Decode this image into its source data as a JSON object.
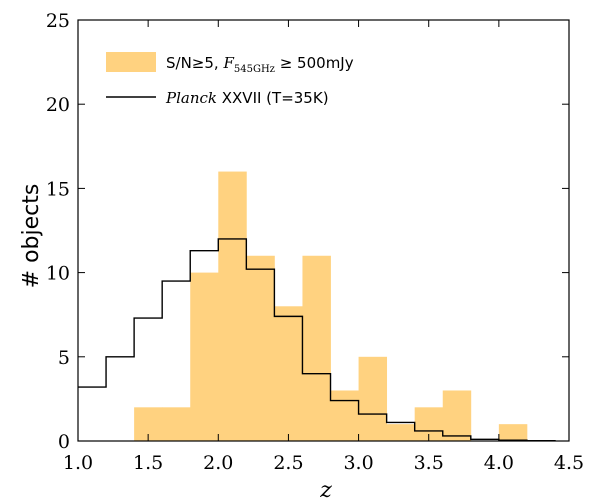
{
  "chart_data": {
    "type": "histogram",
    "xlabel": "z",
    "ylabel": "# objects",
    "xlim": [
      1.0,
      4.5
    ],
    "ylim": [
      0,
      25
    ],
    "xticks": [
      "1.0",
      "1.5",
      "2.0",
      "2.5",
      "3.0",
      "3.5",
      "4.0",
      "4.5"
    ],
    "yticks": [
      "0",
      "5",
      "10",
      "15",
      "20",
      "25"
    ],
    "grid": false,
    "legend_position": "top-left",
    "series": [
      {
        "name": "S/N≥5, F545GHz ≥ 500mJy",
        "legend_parts": {
          "prefix": "S/N≥5, ",
          "var": "F",
          "sub": "545GHz",
          "suffix": " ≥ 500mJy"
        },
        "style": "filled",
        "color": "#ffd280",
        "bins": [
          {
            "x0": 1.4,
            "x1": 1.6,
            "value": 2
          },
          {
            "x0": 1.6,
            "x1": 1.8,
            "value": 2
          },
          {
            "x0": 1.8,
            "x1": 2.0,
            "value": 10
          },
          {
            "x0": 2.0,
            "x1": 2.2,
            "value": 16
          },
          {
            "x0": 2.2,
            "x1": 2.4,
            "value": 11
          },
          {
            "x0": 2.4,
            "x1": 2.6,
            "value": 8
          },
          {
            "x0": 2.6,
            "x1": 2.8,
            "value": 11
          },
          {
            "x0": 2.8,
            "x1": 3.0,
            "value": 3
          },
          {
            "x0": 3.0,
            "x1": 3.2,
            "value": 5
          },
          {
            "x0": 3.2,
            "x1": 3.4,
            "value": 1
          },
          {
            "x0": 3.4,
            "x1": 3.6,
            "value": 2
          },
          {
            "x0": 3.6,
            "x1": 3.8,
            "value": 3
          },
          {
            "x0": 3.8,
            "x1": 4.0,
            "value": 0
          },
          {
            "x0": 4.0,
            "x1": 4.2,
            "value": 1
          }
        ]
      },
      {
        "name": "Planck XXVII (T=35K)",
        "legend_parts": {
          "italic": "Planck",
          "rest": " XXVII (T=35K)"
        },
        "style": "step",
        "color": "#000000",
        "bins": [
          {
            "x0": 1.0,
            "x1": 1.2,
            "value": 3.2
          },
          {
            "x0": 1.2,
            "x1": 1.4,
            "value": 5.0
          },
          {
            "x0": 1.4,
            "x1": 1.6,
            "value": 7.3
          },
          {
            "x0": 1.6,
            "x1": 1.8,
            "value": 9.5
          },
          {
            "x0": 1.8,
            "x1": 2.0,
            "value": 11.3
          },
          {
            "x0": 2.0,
            "x1": 2.2,
            "value": 12.0
          },
          {
            "x0": 2.2,
            "x1": 2.4,
            "value": 10.2
          },
          {
            "x0": 2.4,
            "x1": 2.6,
            "value": 7.4
          },
          {
            "x0": 2.6,
            "x1": 2.8,
            "value": 4.0
          },
          {
            "x0": 2.8,
            "x1": 3.0,
            "value": 2.4
          },
          {
            "x0": 3.0,
            "x1": 3.2,
            "value": 1.6
          },
          {
            "x0": 3.2,
            "x1": 3.4,
            "value": 1.1
          },
          {
            "x0": 3.4,
            "x1": 3.6,
            "value": 0.6
          },
          {
            "x0": 3.6,
            "x1": 3.8,
            "value": 0.3
          },
          {
            "x0": 3.8,
            "x1": 4.0,
            "value": 0.1
          },
          {
            "x0": 4.0,
            "x1": 4.2,
            "value": 0.05
          },
          {
            "x0": 4.2,
            "x1": 4.4,
            "value": 0.02
          }
        ]
      }
    ]
  }
}
